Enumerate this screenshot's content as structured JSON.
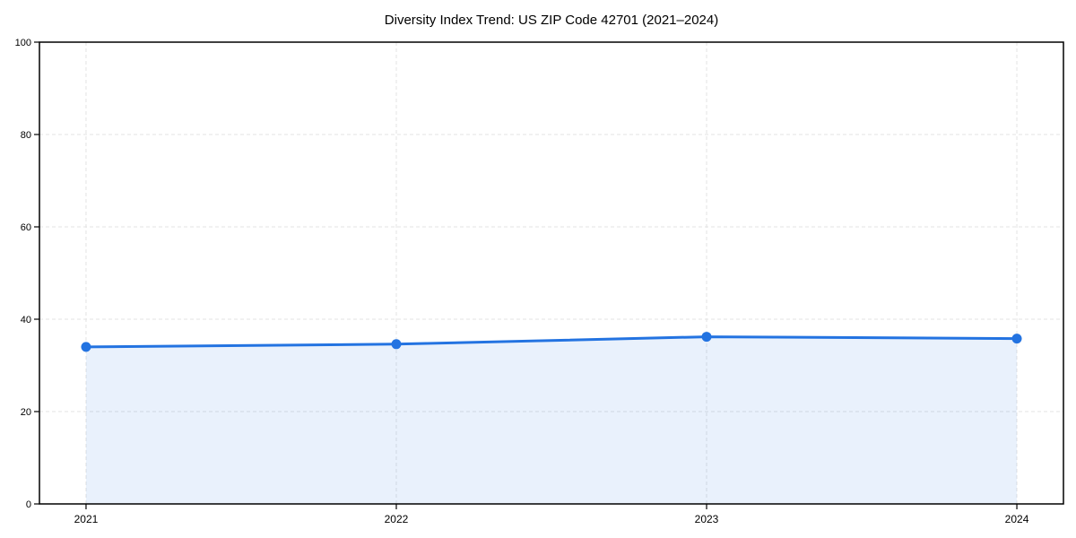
{
  "chart_data": {
    "type": "area",
    "title": "Diversity Index Trend: US ZIP Code 42701 (2021–2024)",
    "categories": [
      "2021",
      "2022",
      "2023",
      "2024"
    ],
    "series": [
      {
        "name": "Diversity Index",
        "values": [
          34.0,
          34.6,
          36.2,
          35.8
        ]
      }
    ],
    "xlabel": "",
    "ylabel": "",
    "ylim": [
      0,
      100
    ],
    "yticks": [
      0,
      20,
      40,
      60,
      80,
      100
    ],
    "grid": true,
    "grid_style": "dashed",
    "legend": "none",
    "colors": {
      "line": "#2373e1",
      "marker": "#2373e1",
      "fill_area": "rgba(35,115,225,0.10)",
      "grid": "#e3e3e3",
      "axis": "#000000",
      "tick_text": "#000000",
      "background": "#ffffff"
    }
  }
}
